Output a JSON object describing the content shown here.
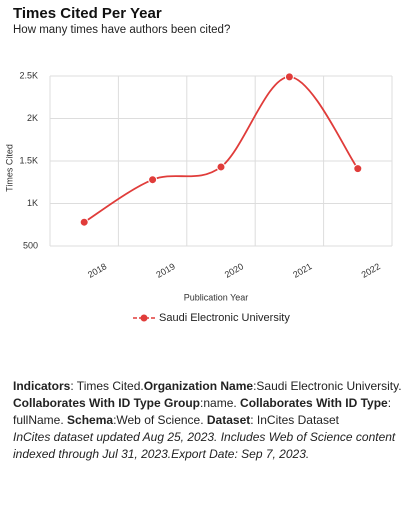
{
  "chart_data": {
    "type": "line",
    "title": "Times Cited Per Year",
    "subtitle": "How many times have authors been cited?",
    "y_label": "Times Cited",
    "x_label": "Publication Year",
    "categories": [
      "2018",
      "2019",
      "2020",
      "2021",
      "2022"
    ],
    "series": [
      {
        "name": "Saudi Electronic University",
        "color": "#e03c3a",
        "values": [
          780,
          1280,
          1430,
          2490,
          1410
        ]
      }
    ],
    "ylim": [
      500,
      2500
    ],
    "yticks": [
      500,
      {
        "value": 1000,
        "label": "1K"
      },
      {
        "value": 1500,
        "label": "1.5K"
      },
      {
        "value": 2000,
        "label": "2K"
      },
      {
        "value": 2500,
        "label": "2.5K"
      }
    ],
    "grid": true,
    "smooth": true
  },
  "footer": {
    "indicators": [
      {
        "label": "Indicators",
        "text": ": Times Cited."
      },
      {
        "label": "Organization Name",
        "text": ":Saudi Electronic University. "
      },
      {
        "label": "Collaborates With ID Type Group",
        "text": ":name. "
      },
      {
        "label": "Collaborates With ID Type",
        "text": ": fullName. "
      },
      {
        "label": "Schema",
        "text": ":Web of Science. "
      },
      {
        "label": "Dataset",
        "text": ": InCites Dataset"
      }
    ],
    "note": "InCites dataset updated Aug 25, 2023. Includes Web of Science content indexed through Jul 31, 2023.Export Date: Sep 7, 2023."
  }
}
